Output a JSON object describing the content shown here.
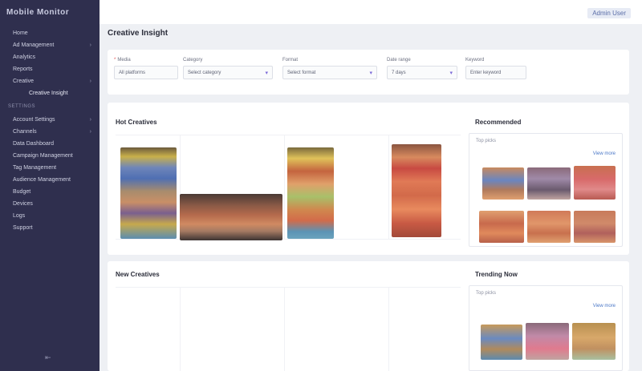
{
  "app": {
    "brand": "Mobile Monitor"
  },
  "user": {
    "name": "Admin User"
  },
  "sidebar": {
    "items": [
      {
        "label": "Home",
        "chevron": ""
      },
      {
        "label": "Ad Management",
        "chevron": "›"
      },
      {
        "label": "Analytics",
        "chevron": ""
      },
      {
        "label": "Reports",
        "chevron": ""
      },
      {
        "label": "Creative",
        "chevron": "›"
      }
    ],
    "sub_item": "Creative Insight",
    "section": "SETTINGS",
    "items2": [
      {
        "label": "Account Settings",
        "chevron": "›"
      },
      {
        "label": "Channels",
        "chevron": "›"
      },
      {
        "label": "Data Dashboard",
        "chevron": ""
      },
      {
        "label": "Campaign Management",
        "chevron": ""
      },
      {
        "label": "Tag Management",
        "chevron": ""
      },
      {
        "label": "Audience Management",
        "chevron": ""
      },
      {
        "label": "Budget",
        "chevron": ""
      },
      {
        "label": "Devices",
        "chevron": ""
      },
      {
        "label": "Logs",
        "chevron": ""
      },
      {
        "label": "Support",
        "chevron": ""
      }
    ],
    "collapse_icon": "collapse-icon"
  },
  "page": {
    "title": "Creative Insight"
  },
  "filters": {
    "f1": {
      "label": "Media",
      "value": "All platforms",
      "required": "*"
    },
    "f2": {
      "label": "Category",
      "value": "Select category",
      "arrow": "▾"
    },
    "f3": {
      "label": "Format",
      "value": "Select format",
      "arrow": "▾"
    },
    "f4": {
      "label": "Date range",
      "value": "7 days",
      "arrow": "▾"
    },
    "f5": {
      "label": "Keyword",
      "value": "Enter keyword"
    }
  },
  "cards": {
    "top": {
      "title": "Hot Creatives",
      "side_title": "Recommended",
      "side_sub": "Top picks",
      "more": "View more"
    },
    "bottom": {
      "title": "New Creatives",
      "side_title": "Trending Now",
      "side_sub": "Top picks",
      "more": "View more"
    }
  },
  "palette": {
    "accent": "#7d6bd8",
    "link": "#4a77c7",
    "sidebar": "#2f2f4e"
  }
}
